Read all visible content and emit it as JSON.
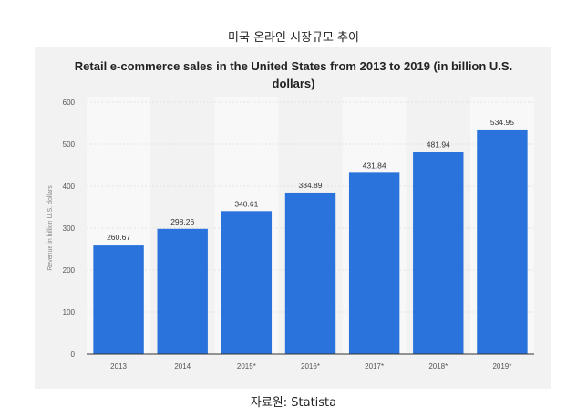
{
  "caption_top": "미국 온라인 시장규모 추이",
  "caption_bottom": "자료원: Statista",
  "chart_data": {
    "type": "bar",
    "title": "Retail e-commerce sales in the United States from 2013 to 2019 (in billion U.S. dollars)",
    "ylabel": "Revenue in billion U.S. dollars",
    "xlabel": "",
    "categories": [
      "2013",
      "2014",
      "2015*",
      "2016*",
      "2017*",
      "2018*",
      "2019*"
    ],
    "values": [
      260.67,
      298.26,
      340.61,
      384.89,
      431.84,
      481.94,
      534.95
    ],
    "value_labels": [
      "260.67",
      "298.26",
      "340.61",
      "384.89",
      "431.84",
      "481.94",
      "534.95"
    ],
    "yticks": [
      0,
      100,
      200,
      300,
      400,
      500,
      600
    ],
    "ylim": [
      0,
      600
    ],
    "grid": true,
    "bar_color": "#2a73dc"
  }
}
